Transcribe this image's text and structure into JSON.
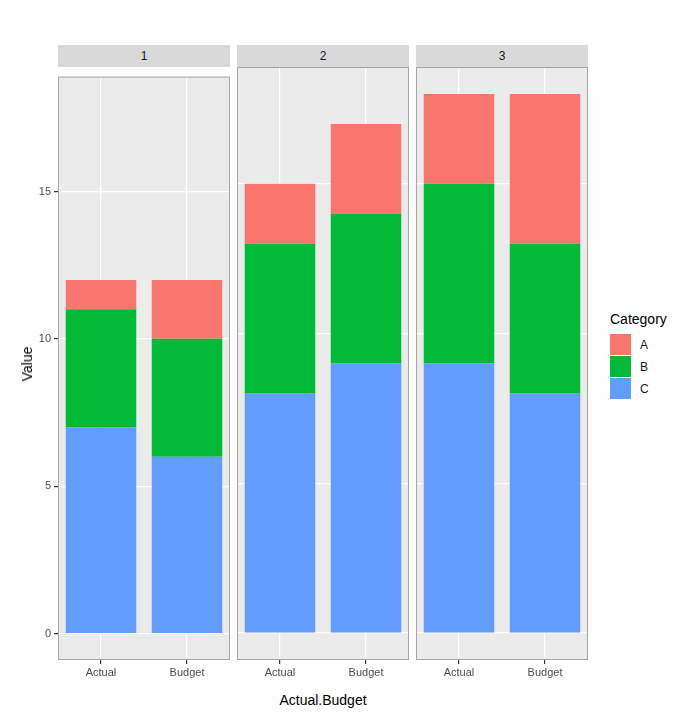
{
  "chart_data": [
    {
      "type": "bar",
      "title": "1",
      "stacked": true,
      "grid": true,
      "tick_labels": true,
      "y_label": "Value",
      "categories": [
        "Actual",
        "Budget"
      ],
      "series": [
        {
          "name": "A",
          "color": "#F8766D",
          "values": [
            1,
            2
          ]
        },
        {
          "name": "B",
          "color": "#00BA38",
          "values": [
            4,
            4
          ]
        },
        {
          "name": "C",
          "color": "#619CFF",
          "values": [
            7,
            6
          ]
        }
      ],
      "ylim": [
        -0.9,
        18.9
      ],
      "yticks": [
        0,
        5,
        10,
        15
      ]
    },
    {
      "type": "bar",
      "title": "2",
      "stacked": true,
      "grid": true,
      "tick_labels": "x",
      "x_label": "Actual.Budget",
      "categories": [
        "Actual",
        "Budget"
      ],
      "series": [
        {
          "name": "A",
          "color": "#F8766D",
          "values": [
            2,
            3
          ]
        },
        {
          "name": "B",
          "color": "#00BA38",
          "values": [
            5,
            5
          ]
        },
        {
          "name": "C",
          "color": "#619CFF",
          "values": [
            8,
            9
          ]
        }
      ],
      "ylim": [
        -0.9,
        18.9
      ],
      "yticks": [
        0,
        5,
        10,
        15
      ]
    },
    {
      "type": "bar",
      "title": "3",
      "stacked": true,
      "grid": true,
      "tick_labels": "x",
      "legend": "right",
      "legend_title": "Category",
      "categories": [
        "Actual",
        "Budget"
      ],
      "series": [
        {
          "name": "A",
          "color": "#F8766D",
          "values": [
            3,
            5
          ]
        },
        {
          "name": "B",
          "color": "#00BA38",
          "values": [
            6,
            5
          ]
        },
        {
          "name": "C",
          "color": "#619CFF",
          "values": [
            9,
            8
          ]
        }
      ],
      "ylim": [
        -0.9,
        18.9
      ],
      "yticks": [
        0,
        5,
        10,
        15
      ]
    }
  ]
}
